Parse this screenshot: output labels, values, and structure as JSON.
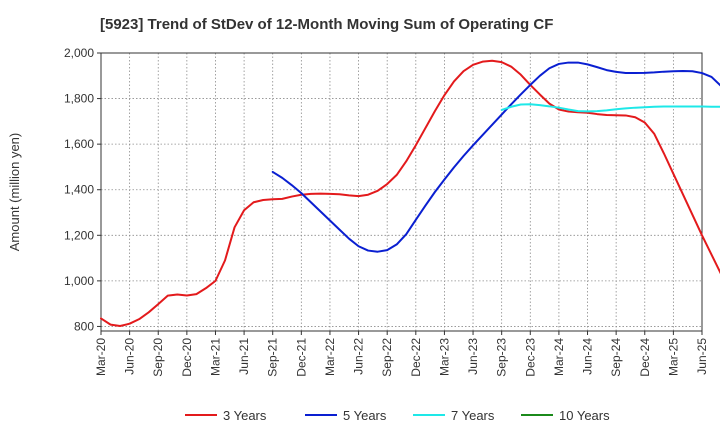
{
  "chart_data": {
    "type": "line",
    "title": "[5923]  Trend of StDev of 12-Month Moving Sum of Operating CF",
    "xlabel": "",
    "ylabel": "Amount (million yen)",
    "ylim": [
      780,
      2000
    ],
    "yticks": [
      800,
      1000,
      1200,
      1400,
      1600,
      1800,
      2000
    ],
    "ytick_labels": [
      "800",
      "1,000",
      "1,200",
      "1,400",
      "1,600",
      "1,800",
      "2,000"
    ],
    "xticks": [
      "Mar-20",
      "Jun-20",
      "Sep-20",
      "Dec-20",
      "Mar-21",
      "Jun-21",
      "Sep-21",
      "Dec-21",
      "Mar-22",
      "Jun-22",
      "Sep-22",
      "Dec-22",
      "Mar-23",
      "Jun-23",
      "Sep-23",
      "Dec-23",
      "Mar-24",
      "Jun-24",
      "Sep-24",
      "Dec-24",
      "Mar-25",
      "Jun-25"
    ],
    "grid": true,
    "legend_position": "bottom",
    "series": [
      {
        "name": "3 Years",
        "color": "#e31a1c",
        "start_month": 0,
        "values": [
          835,
          808,
          802,
          812,
          832,
          862,
          898,
          935,
          940,
          936,
          942,
          968,
          1000,
          1090,
          1235,
          1310,
          1345,
          1355,
          1358,
          1360,
          1370,
          1378,
          1382,
          1383,
          1382,
          1380,
          1375,
          1372,
          1378,
          1395,
          1425,
          1465,
          1525,
          1595,
          1670,
          1745,
          1815,
          1875,
          1920,
          1948,
          1962,
          1966,
          1960,
          1940,
          1905,
          1860,
          1818,
          1778,
          1752,
          1743,
          1740,
          1738,
          1732,
          1728,
          1727,
          1726,
          1718,
          1695,
          1645,
          1560,
          1470,
          1380,
          1290,
          1200,
          1115,
          1030,
          940
        ]
      },
      {
        "name": "5 Years",
        "color": "#0a1fd1",
        "start_month": 18,
        "values": [
          1478,
          1452,
          1420,
          1385,
          1345,
          1305,
          1265,
          1225,
          1185,
          1152,
          1133,
          1128,
          1135,
          1160,
          1205,
          1268,
          1330,
          1390,
          1445,
          1498,
          1548,
          1595,
          1640,
          1685,
          1730,
          1775,
          1818,
          1860,
          1900,
          1933,
          1952,
          1958,
          1958,
          1950,
          1938,
          1925,
          1917,
          1912,
          1912,
          1913,
          1915,
          1918,
          1920,
          1921,
          1920,
          1912,
          1895,
          1855
        ]
      },
      {
        "name": "7 Years",
        "color": "#1ee8e8",
        "start_month": 42,
        "values": [
          1750,
          1764,
          1774,
          1775,
          1771,
          1766,
          1760,
          1752,
          1745,
          1744,
          1745,
          1748,
          1753,
          1757,
          1760,
          1762,
          1764,
          1765,
          1765,
          1765,
          1765,
          1765,
          1764,
          1764
        ]
      },
      {
        "name": "10 Years",
        "color": "#1b8a1b",
        "start_month": 0,
        "values": []
      }
    ]
  }
}
